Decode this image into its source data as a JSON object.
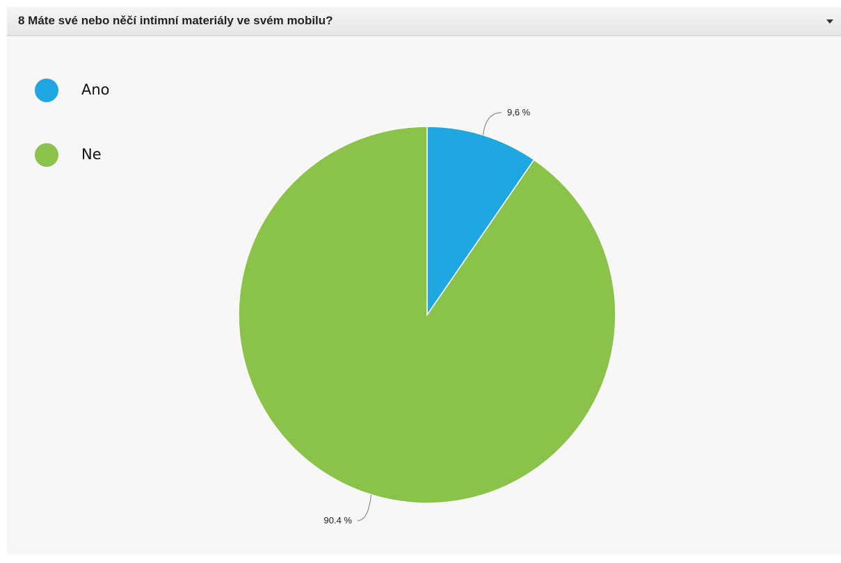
{
  "question": {
    "title": "8 Máte své nebo něčí intimní materiály ve svém mobilu?",
    "toggle_icon": "chevron-down-icon"
  },
  "legend": [
    {
      "label": "Ano",
      "color": "#1ea7e1"
    },
    {
      "label": "Ne",
      "color": "#8bc34a"
    }
  ],
  "chart_data": {
    "type": "pie",
    "categories": [
      "Ano",
      "Ne"
    ],
    "values": [
      9.6,
      90.4
    ],
    "colors": [
      "#1ea7e1",
      "#8bc34a"
    ],
    "data_labels": [
      "9,6 %",
      "90.4 %"
    ],
    "legend_position": "top-left"
  }
}
